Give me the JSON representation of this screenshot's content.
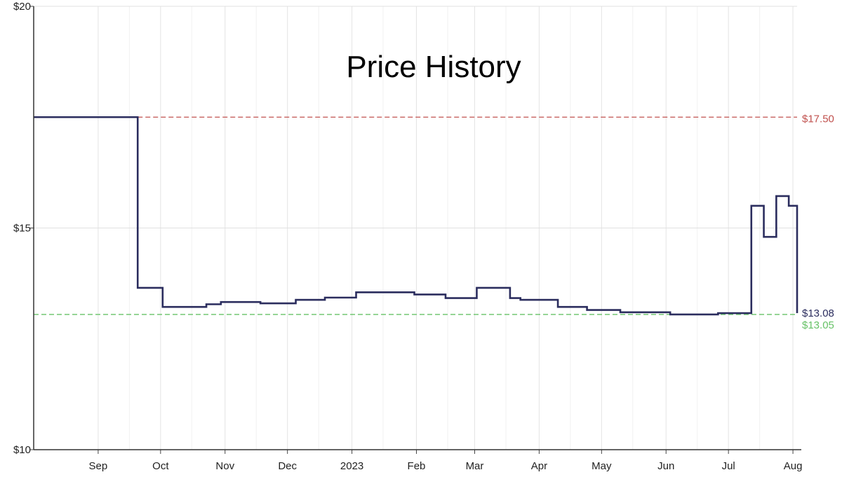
{
  "chart_data": {
    "type": "line",
    "title": "Price History",
    "y_unit": "$",
    "ylim": [
      10,
      20
    ],
    "y_ticks": [
      {
        "value": 10,
        "label": "$10"
      },
      {
        "value": 15,
        "label": "$15"
      },
      {
        "value": 20,
        "label": "$20"
      }
    ],
    "xlim": [
      "2022-08-01",
      "2023-08-03"
    ],
    "x_ticks": [
      {
        "date": "2022-09-01",
        "label": "Sep"
      },
      {
        "date": "2022-10-01",
        "label": "Oct"
      },
      {
        "date": "2022-11-01",
        "label": "Nov"
      },
      {
        "date": "2022-12-01",
        "label": "Dec"
      },
      {
        "date": "2023-01-01",
        "label": "2023"
      },
      {
        "date": "2023-02-01",
        "label": "Feb"
      },
      {
        "date": "2023-03-01",
        "label": "Mar"
      },
      {
        "date": "2023-04-01",
        "label": "Apr"
      },
      {
        "date": "2023-05-01",
        "label": "May"
      },
      {
        "date": "2023-06-01",
        "label": "Jun"
      },
      {
        "date": "2023-07-01",
        "label": "Jul"
      },
      {
        "date": "2023-08-01",
        "label": "Aug"
      }
    ],
    "grid": true,
    "series": [
      {
        "color": "#2b2d5e",
        "step": true,
        "points": [
          {
            "x": "2022-08-01",
            "y": 17.5
          },
          {
            "x": "2022-09-20",
            "y": 13.65
          },
          {
            "x": "2022-10-02",
            "y": 13.22
          },
          {
            "x": "2022-10-23",
            "y": 13.28
          },
          {
            "x": "2022-10-30",
            "y": 13.33
          },
          {
            "x": "2022-11-18",
            "y": 13.3
          },
          {
            "x": "2022-12-05",
            "y": 13.38
          },
          {
            "x": "2022-12-19",
            "y": 13.43
          },
          {
            "x": "2023-01-03",
            "y": 13.55
          },
          {
            "x": "2023-01-31",
            "y": 13.5
          },
          {
            "x": "2023-02-15",
            "y": 13.42
          },
          {
            "x": "2023-03-02",
            "y": 13.65
          },
          {
            "x": "2023-03-18",
            "y": 13.42
          },
          {
            "x": "2023-03-23",
            "y": 13.38
          },
          {
            "x": "2023-04-10",
            "y": 13.22
          },
          {
            "x": "2023-04-24",
            "y": 13.15
          },
          {
            "x": "2023-05-10",
            "y": 13.1
          },
          {
            "x": "2023-06-03",
            "y": 13.05
          },
          {
            "x": "2023-06-26",
            "y": 13.08
          },
          {
            "x": "2023-07-12",
            "y": 15.5
          },
          {
            "x": "2023-07-18",
            "y": 14.8
          },
          {
            "x": "2023-07-24",
            "y": 15.72
          },
          {
            "x": "2023-07-30",
            "y": 15.5
          },
          {
            "x": "2023-08-03",
            "y": 13.08
          }
        ]
      }
    ],
    "reference_lines": [
      {
        "value": 17.5,
        "label": "$17.50",
        "color": "#c0504d",
        "style": "dashed"
      },
      {
        "value": 13.05,
        "label": "$13.05",
        "color": "#66c266",
        "style": "dashed"
      }
    ],
    "current_value_label": {
      "value": 13.08,
      "label": "$13.08",
      "color": "#2b2d5e"
    }
  }
}
